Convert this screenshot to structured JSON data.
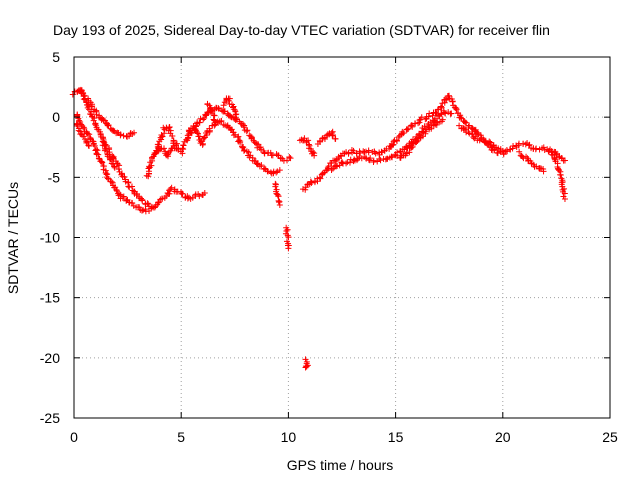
{
  "chart_data": {
    "type": "scatter",
    "title": "Day 193 of 2025, Sidereal Day-to-day VTEC variation (SDTVAR) for receiver flin",
    "xlabel": "GPS time / hours",
    "ylabel": "SDTVAR / TECUs",
    "xlim": [
      0,
      25
    ],
    "ylim": [
      -25,
      5
    ],
    "xticks": [
      0,
      5,
      10,
      15,
      20,
      25
    ],
    "xtick_labels": [
      "0",
      "5",
      "10",
      "15",
      "20",
      "25"
    ],
    "yticks": [
      5,
      0,
      -5,
      -10,
      -15,
      -20,
      -25
    ],
    "ytick_labels": [
      "5",
      "0",
      "-5",
      "-10",
      "-15",
      "-20",
      "-25"
    ],
    "grid": true,
    "marker": "+",
    "color": "#ff0000",
    "series": [
      {
        "name": "SDTVAR",
        "tracks": [
          [
            [
              0.0,
              2.0
            ],
            [
              0.3,
              2.3
            ],
            [
              0.5,
              1.5
            ],
            [
              0.8,
              0.2
            ],
            [
              1.1,
              -1.0
            ],
            [
              1.5,
              -2.4
            ],
            [
              1.9,
              -3.6
            ],
            [
              2.3,
              -4.8
            ],
            [
              2.7,
              -6.0
            ],
            [
              3.1,
              -6.8
            ],
            [
              3.5,
              -7.4
            ],
            [
              3.7,
              -7.6
            ],
            [
              3.9,
              -7.2
            ],
            [
              4.2,
              -6.6
            ],
            [
              4.6,
              -6.0
            ],
            [
              5.0,
              -6.3
            ],
            [
              5.4,
              -6.8
            ],
            [
              5.8,
              -6.5
            ],
            [
              6.1,
              -6.3
            ]
          ],
          [
            [
              0.1,
              0.3
            ],
            [
              0.3,
              -0.5
            ],
            [
              0.6,
              -1.3
            ],
            [
              0.9,
              -2.2
            ],
            [
              1.2,
              -3.5
            ],
            [
              1.5,
              -4.7
            ],
            [
              1.8,
              -5.7
            ],
            [
              2.1,
              -6.5
            ],
            [
              2.5,
              -7.0
            ],
            [
              2.9,
              -7.4
            ],
            [
              3.2,
              -7.7
            ],
            [
              3.5,
              -7.8
            ]
          ],
          [
            [
              0.2,
              2.2
            ],
            [
              0.4,
              2.0
            ],
            [
              0.7,
              1.2
            ],
            [
              1.0,
              0.5
            ],
            [
              1.3,
              -0.2
            ],
            [
              1.6,
              -0.7
            ],
            [
              1.9,
              -1.2
            ],
            [
              2.2,
              -1.5
            ],
            [
              2.5,
              -1.6
            ],
            [
              2.8,
              -1.3
            ]
          ],
          [
            [
              0.1,
              -0.5
            ],
            [
              0.3,
              -1.2
            ],
            [
              0.5,
              -1.8
            ],
            [
              0.7,
              -2.4
            ]
          ],
          [
            [
              1.3,
              -2.0
            ],
            [
              1.5,
              -2.9
            ],
            [
              1.7,
              -3.6
            ],
            [
              1.9,
              -4.2
            ]
          ],
          [
            [
              3.4,
              -5.0
            ],
            [
              3.6,
              -3.8
            ],
            [
              3.8,
              -2.8
            ],
            [
              4.0,
              -2.2
            ],
            [
              4.2,
              -1.0
            ],
            [
              4.4,
              -0.8
            ],
            [
              4.6,
              -1.8
            ],
            [
              4.8,
              -2.6
            ],
            [
              5.0,
              -3.0
            ],
            [
              5.2,
              -2.0
            ],
            [
              5.4,
              -1.2
            ],
            [
              5.6,
              -0.8
            ],
            [
              5.8,
              -1.5
            ],
            [
              6.0,
              -2.3
            ]
          ],
          [
            [
              3.8,
              -3.0
            ],
            [
              4.0,
              -2.5
            ],
            [
              4.2,
              -2.8
            ],
            [
              4.4,
              -3.2
            ],
            [
              4.6,
              -2.6
            ],
            [
              4.8,
              -2.2
            ]
          ],
          [
            [
              5.4,
              -1.5
            ],
            [
              5.8,
              -0.5
            ],
            [
              6.2,
              0.2
            ],
            [
              6.6,
              0.8
            ],
            [
              7.0,
              0.5
            ],
            [
              7.4,
              0.0
            ],
            [
              7.8,
              -0.5
            ],
            [
              8.2,
              -1.5
            ],
            [
              8.6,
              -2.5
            ],
            [
              9.0,
              -3.0
            ],
            [
              9.4,
              -3.2
            ],
            [
              9.8,
              -3.5
            ],
            [
              10.1,
              -3.4
            ]
          ],
          [
            [
              6.0,
              -2.0
            ],
            [
              6.4,
              -0.8
            ],
            [
              6.8,
              -0.3
            ],
            [
              7.2,
              -0.8
            ],
            [
              7.6,
              -1.6
            ],
            [
              8.0,
              -2.8
            ],
            [
              8.4,
              -3.6
            ],
            [
              8.8,
              -4.2
            ],
            [
              9.2,
              -4.6
            ],
            [
              9.6,
              -4.4
            ]
          ],
          [
            [
              7.0,
              1.0
            ],
            [
              7.2,
              1.6
            ],
            [
              7.4,
              0.8
            ],
            [
              7.6,
              -0.2
            ]
          ],
          [
            [
              6.2,
              1.2
            ],
            [
              6.4,
              0.6
            ],
            [
              6.6,
              -0.4
            ]
          ],
          [
            [
              9.4,
              -5.5
            ],
            [
              9.5,
              -6.4
            ],
            [
              9.6,
              -7.3
            ]
          ],
          [
            [
              9.9,
              -9.2
            ],
            [
              10.0,
              -10.9
            ]
          ],
          [
            [
              10.8,
              -20.2
            ],
            [
              10.9,
              -20.5
            ],
            [
              10.8,
              -20.8
            ]
          ],
          [
            [
              10.7,
              -6.0
            ],
            [
              10.9,
              -5.6
            ],
            [
              11.1,
              -5.3
            ],
            [
              11.3,
              -5.4
            ],
            [
              11.5,
              -5.0
            ],
            [
              11.8,
              -4.3
            ],
            [
              12.0,
              -3.8
            ],
            [
              12.3,
              -3.4
            ],
            [
              12.6,
              -3.0
            ],
            [
              13.0,
              -2.8
            ],
            [
              13.4,
              -3.0
            ],
            [
              13.8,
              -2.8
            ],
            [
              14.2,
              -3.0
            ],
            [
              14.6,
              -2.7
            ],
            [
              15.0,
              -2.0
            ],
            [
              15.4,
              -1.2
            ],
            [
              15.8,
              -0.6
            ],
            [
              16.2,
              -0.2
            ],
            [
              16.6,
              0.2
            ],
            [
              17.0,
              0.5
            ],
            [
              17.3,
              1.3
            ],
            [
              17.5,
              1.8
            ],
            [
              17.8,
              0.8
            ],
            [
              18.1,
              -0.2
            ],
            [
              18.5,
              -0.8
            ],
            [
              18.9,
              -1.5
            ],
            [
              19.3,
              -2.3
            ],
            [
              19.7,
              -2.9
            ],
            [
              20.0,
              -3.0
            ],
            [
              20.3,
              -2.6
            ],
            [
              20.7,
              -2.3
            ],
            [
              21.1,
              -2.2
            ],
            [
              21.5,
              -2.7
            ],
            [
              21.9,
              -2.6
            ],
            [
              22.3,
              -2.8
            ],
            [
              22.6,
              -3.2
            ],
            [
              22.9,
              -3.6
            ]
          ],
          [
            [
              12.0,
              -4.3
            ],
            [
              12.5,
              -3.8
            ],
            [
              13.0,
              -3.6
            ],
            [
              13.5,
              -3.3
            ],
            [
              14.0,
              -3.6
            ],
            [
              14.5,
              -3.5
            ],
            [
              15.0,
              -3.2
            ],
            [
              15.5,
              -2.5
            ],
            [
              16.0,
              -1.6
            ],
            [
              16.4,
              -0.8
            ],
            [
              16.8,
              -0.3
            ],
            [
              17.2,
              0.5
            ],
            [
              17.6,
              0.3
            ]
          ],
          [
            [
              15.2,
              -3.5
            ],
            [
              15.6,
              -2.8
            ],
            [
              16.0,
              -2.0
            ],
            [
              16.4,
              -1.2
            ],
            [
              16.8,
              -0.6
            ],
            [
              17.2,
              -0.2
            ]
          ],
          [
            [
              11.4,
              -2.2
            ],
            [
              11.7,
              -1.6
            ],
            [
              12.0,
              -1.2
            ],
            [
              12.2,
              -1.8
            ]
          ],
          [
            [
              20.8,
              -3.0
            ],
            [
              21.1,
              -3.5
            ],
            [
              21.4,
              -3.9
            ],
            [
              21.7,
              -4.2
            ],
            [
              21.9,
              -4.5
            ]
          ],
          [
            [
              22.2,
              -2.7
            ],
            [
              22.4,
              -3.3
            ],
            [
              22.6,
              -4.3
            ],
            [
              22.8,
              -5.8
            ],
            [
              22.9,
              -6.8
            ]
          ],
          [
            [
              18.0,
              -0.8
            ],
            [
              18.4,
              -1.3
            ],
            [
              18.8,
              -1.8
            ],
            [
              19.2,
              -2.0
            ],
            [
              19.6,
              -2.5
            ],
            [
              20.0,
              -2.8
            ]
          ],
          [
            [
              10.5,
              -2.0
            ],
            [
              10.8,
              -1.8
            ],
            [
              11.0,
              -2.5
            ],
            [
              11.2,
              -3.2
            ]
          ]
        ]
      }
    ]
  }
}
